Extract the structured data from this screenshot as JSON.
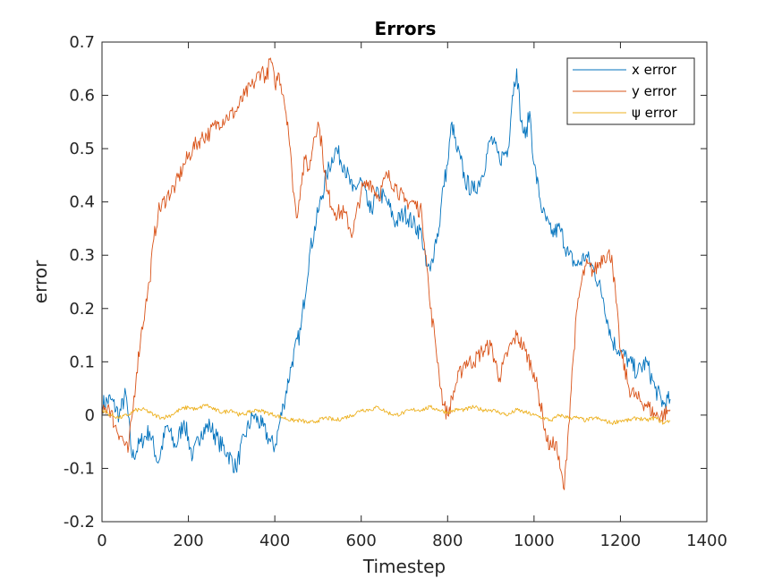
{
  "chart_data": {
    "type": "line",
    "title": "Errors",
    "xlabel": "Timestep",
    "ylabel": "error",
    "xlim": [
      0,
      1400
    ],
    "ylim": [
      -0.2,
      0.7
    ],
    "xticks": [
      "0",
      "200",
      "400",
      "600",
      "800",
      "1000",
      "1200",
      "1400"
    ],
    "yticks": [
      "-0.2",
      "-0.1",
      "0",
      "0.1",
      "0.2",
      "0.3",
      "0.4",
      "0.5",
      "0.6",
      "0.7"
    ],
    "grid": false,
    "legend_position": "top-right",
    "series": [
      {
        "name": "x error",
        "color": "#0072BD",
        "x": [
          0,
          20,
          40,
          55,
          70,
          90,
          110,
          130,
          150,
          170,
          190,
          210,
          230,
          250,
          270,
          290,
          310,
          330,
          350,
          370,
          390,
          400,
          420,
          440,
          460,
          480,
          500,
          520,
          540,
          560,
          580,
          600,
          620,
          640,
          660,
          680,
          700,
          720,
          740,
          750,
          760,
          770,
          780,
          790,
          800,
          810,
          820,
          830,
          840,
          860,
          880,
          900,
          920,
          940,
          950,
          960,
          970,
          980,
          990,
          1000,
          1020,
          1040,
          1060,
          1080,
          1100,
          1120,
          1140,
          1160,
          1180,
          1200,
          1220,
          1240,
          1260,
          1280,
          1300,
          1315
        ],
        "y": [
          0.02,
          0.03,
          0.0,
          0.04,
          -0.08,
          -0.05,
          -0.03,
          -0.09,
          -0.02,
          -0.06,
          -0.01,
          -0.08,
          -0.03,
          -0.02,
          -0.05,
          -0.07,
          -0.1,
          -0.04,
          0.0,
          -0.02,
          -0.05,
          -0.06,
          0.02,
          0.1,
          0.16,
          0.3,
          0.38,
          0.45,
          0.5,
          0.47,
          0.42,
          0.44,
          0.38,
          0.42,
          0.4,
          0.36,
          0.38,
          0.36,
          0.34,
          0.28,
          0.27,
          0.32,
          0.35,
          0.43,
          0.47,
          0.55,
          0.5,
          0.48,
          0.44,
          0.42,
          0.45,
          0.52,
          0.48,
          0.5,
          0.6,
          0.65,
          0.55,
          0.52,
          0.57,
          0.47,
          0.38,
          0.34,
          0.35,
          0.3,
          0.28,
          0.3,
          0.27,
          0.22,
          0.14,
          0.12,
          0.1,
          0.08,
          0.1,
          0.05,
          0.02,
          0.03
        ]
      },
      {
        "name": "y error",
        "color": "#D95319",
        "x": [
          0,
          15,
          30,
          45,
          60,
          70,
          80,
          90,
          100,
          110,
          120,
          130,
          150,
          170,
          190,
          210,
          230,
          250,
          270,
          290,
          310,
          330,
          350,
          370,
          380,
          390,
          400,
          410,
          420,
          430,
          440,
          450,
          460,
          470,
          480,
          490,
          500,
          510,
          520,
          540,
          560,
          580,
          600,
          620,
          640,
          660,
          680,
          700,
          720,
          740,
          750,
          760,
          770,
          780,
          790,
          800,
          820,
          840,
          860,
          880,
          900,
          920,
          940,
          960,
          980,
          1000,
          1020,
          1030,
          1040,
          1050,
          1060,
          1070,
          1080,
          1090,
          1100,
          1110,
          1120,
          1140,
          1160,
          1180,
          1200,
          1220,
          1240,
          1260,
          1280,
          1300,
          1315
        ],
        "y": [
          0.0,
          0.02,
          -0.02,
          -0.04,
          -0.07,
          0.0,
          0.08,
          0.15,
          0.2,
          0.25,
          0.33,
          0.38,
          0.41,
          0.43,
          0.47,
          0.5,
          0.52,
          0.53,
          0.55,
          0.56,
          0.57,
          0.6,
          0.62,
          0.65,
          0.63,
          0.67,
          0.62,
          0.64,
          0.6,
          0.55,
          0.45,
          0.37,
          0.43,
          0.48,
          0.46,
          0.52,
          0.55,
          0.5,
          0.42,
          0.38,
          0.38,
          0.34,
          0.42,
          0.44,
          0.41,
          0.45,
          0.43,
          0.4,
          0.4,
          0.38,
          0.3,
          0.2,
          0.15,
          0.08,
          0.02,
          0.0,
          0.06,
          0.1,
          0.1,
          0.12,
          0.13,
          0.07,
          0.12,
          0.15,
          0.12,
          0.08,
          0.0,
          -0.05,
          -0.06,
          -0.05,
          -0.1,
          -0.14,
          -0.02,
          0.1,
          0.2,
          0.25,
          0.28,
          0.27,
          0.3,
          0.3,
          0.12,
          0.05,
          0.03,
          0.02,
          0.0,
          0.0,
          0.01
        ]
      },
      {
        "name": "ψ error",
        "color": "#EDB120",
        "x": [
          0,
          20,
          40,
          60,
          80,
          100,
          120,
          140,
          160,
          180,
          200,
          220,
          240,
          260,
          280,
          300,
          320,
          340,
          360,
          380,
          400,
          420,
          440,
          460,
          480,
          500,
          520,
          540,
          560,
          580,
          600,
          620,
          640,
          660,
          680,
          700,
          720,
          740,
          760,
          780,
          800,
          820,
          840,
          860,
          880,
          900,
          920,
          940,
          960,
          980,
          1000,
          1020,
          1040,
          1060,
          1080,
          1100,
          1120,
          1140,
          1160,
          1180,
          1200,
          1220,
          1240,
          1260,
          1280,
          1300,
          1315
        ],
        "y": [
          0.01,
          0.0,
          -0.005,
          0.0,
          0.01,
          0.01,
          0.0,
          -0.005,
          0.0,
          0.01,
          0.015,
          0.01,
          0.02,
          0.01,
          0.005,
          0.01,
          0.0,
          0.005,
          0.01,
          0.005,
          0.0,
          -0.005,
          -0.01,
          -0.01,
          -0.015,
          -0.01,
          -0.005,
          -0.01,
          -0.005,
          0.0,
          0.01,
          0.01,
          0.015,
          0.005,
          0.0,
          0.005,
          0.01,
          0.01,
          0.015,
          0.01,
          0.005,
          0.01,
          0.01,
          0.015,
          0.01,
          0.01,
          0.005,
          0.0,
          0.01,
          0.005,
          0.0,
          -0.005,
          -0.01,
          0.0,
          -0.005,
          -0.005,
          -0.01,
          -0.005,
          -0.01,
          -0.015,
          -0.01,
          -0.01,
          -0.005,
          -0.01,
          -0.005,
          -0.015,
          -0.01
        ]
      }
    ]
  }
}
